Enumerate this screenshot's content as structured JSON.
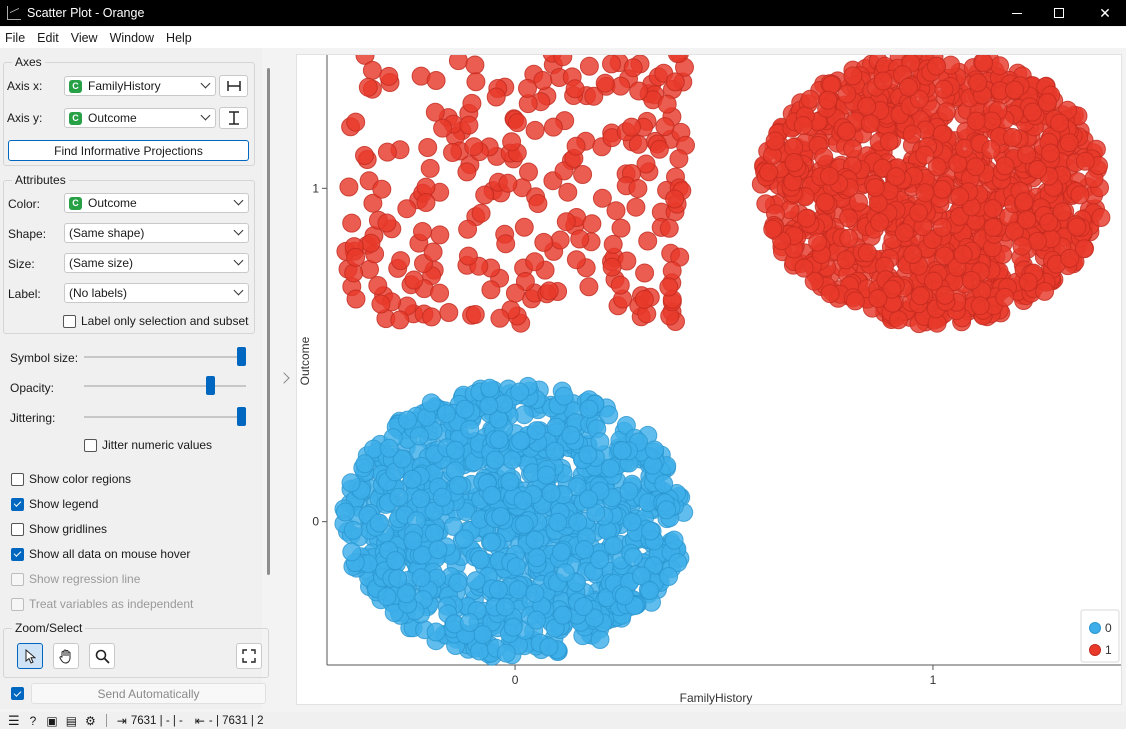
{
  "window": {
    "title": "Scatter Plot - Orange"
  },
  "menu": [
    "File",
    "Edit",
    "View",
    "Window",
    "Help"
  ],
  "axes_group": {
    "title": "Axes",
    "axis_x_label": "Axis x:",
    "axis_x_value": "FamilyHistory",
    "axis_y_label": "Axis y:",
    "axis_y_value": "Outcome",
    "find_button": "Find Informative Projections"
  },
  "attributes_group": {
    "title": "Attributes",
    "color_label": "Color:",
    "color_value": "Outcome",
    "shape_label": "Shape:",
    "shape_value": "(Same shape)",
    "size_label": "Size:",
    "size_value": "(Same size)",
    "label_label": "Label:",
    "label_value": "(No labels)",
    "label_only_selection": "Label only selection and subset"
  },
  "sliders": {
    "symbol_size_label": "Symbol size:",
    "symbol_size_level": 1.0,
    "opacity_label": "Opacity:",
    "opacity_level": 0.8,
    "jittering_label": "Jittering:",
    "jittering_level": 1.0,
    "jitter_numeric": "Jitter numeric values"
  },
  "options": {
    "show_color_regions": "Show color regions",
    "show_legend": "Show legend",
    "show_gridlines": "Show gridlines",
    "show_all_data": "Show all data on mouse hover",
    "show_regression": "Show regression line",
    "treat_independent": "Treat variables as independent"
  },
  "zoom_group": {
    "title": "Zoom/Select"
  },
  "send": {
    "label": "Send Automatically"
  },
  "status": {
    "input_summary": "7631 | - | -",
    "output_summary": "- | 7631 | 2"
  },
  "colors": {
    "class0": "#3daee9",
    "class1": "#e8392b"
  },
  "chart_data": {
    "type": "scatter",
    "xlabel": "FamilyHistory",
    "ylabel": "Outcome",
    "x_ticks": [
      "0",
      "1"
    ],
    "y_ticks": [
      "0",
      "1"
    ],
    "xlim": [
      -0.45,
      1.45
    ],
    "ylim": [
      -0.43,
      1.4
    ],
    "jittered": true,
    "clusters": [
      {
        "x": 0,
        "y": 0,
        "class": "0",
        "density": "dense"
      },
      {
        "x": 0,
        "y": 1,
        "class": "1",
        "density": "sparse"
      },
      {
        "x": 1,
        "y": 1,
        "class": "1",
        "density": "dense"
      }
    ],
    "legend": {
      "placement": "bottom-right",
      "entries": [
        "0",
        "1"
      ]
    }
  }
}
